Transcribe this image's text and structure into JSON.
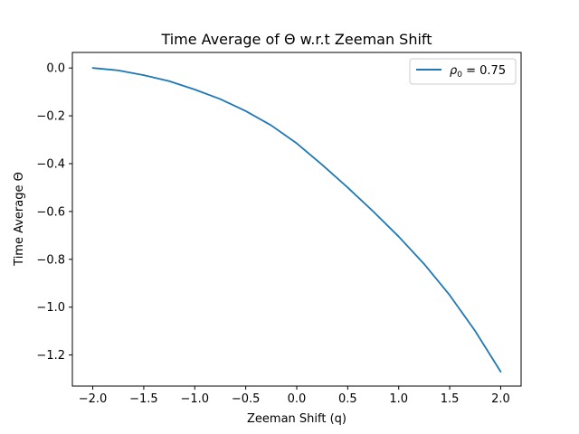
{
  "chart_data": {
    "type": "line",
    "title": "Time Average of Θ w.r.t Zeeman Shift",
    "xlabel": "Zeeman Shift (q)",
    "ylabel": "Time Average Θ",
    "xlim": [
      -2.2,
      2.2
    ],
    "ylim": [
      -1.33,
      0.065
    ],
    "xticks": [
      -2.0,
      -1.5,
      -1.0,
      -0.5,
      0.0,
      0.5,
      1.0,
      1.5,
      2.0
    ],
    "xtick_labels": [
      "−2.0",
      "−1.5",
      "−1.0",
      "−0.5",
      "0.0",
      "0.5",
      "1.0",
      "1.5",
      "2.0"
    ],
    "yticks": [
      0.0,
      -0.2,
      -0.4,
      -0.6,
      -0.8,
      -1.0,
      -1.2
    ],
    "ytick_labels": [
      "0.0",
      "−0.2",
      "−0.4",
      "−0.6",
      "−0.8",
      "−1.0",
      "−1.2"
    ],
    "grid": false,
    "legend_position": "upper-right",
    "series": [
      {
        "name_var": "ρ",
        "name_sub": "0",
        "name_rest": " = 0.75",
        "color": "#1f77b4",
        "x": [
          -2.0,
          -1.75,
          -1.5,
          -1.25,
          -1.0,
          -0.75,
          -0.5,
          -0.25,
          0.0,
          0.25,
          0.5,
          0.75,
          1.0,
          1.25,
          1.5,
          1.75,
          2.0
        ],
        "y": [
          0.0,
          -0.01,
          -0.03,
          -0.055,
          -0.09,
          -0.13,
          -0.18,
          -0.24,
          -0.315,
          -0.405,
          -0.5,
          -0.6,
          -0.705,
          -0.82,
          -0.95,
          -1.1,
          -1.27
        ]
      }
    ]
  }
}
